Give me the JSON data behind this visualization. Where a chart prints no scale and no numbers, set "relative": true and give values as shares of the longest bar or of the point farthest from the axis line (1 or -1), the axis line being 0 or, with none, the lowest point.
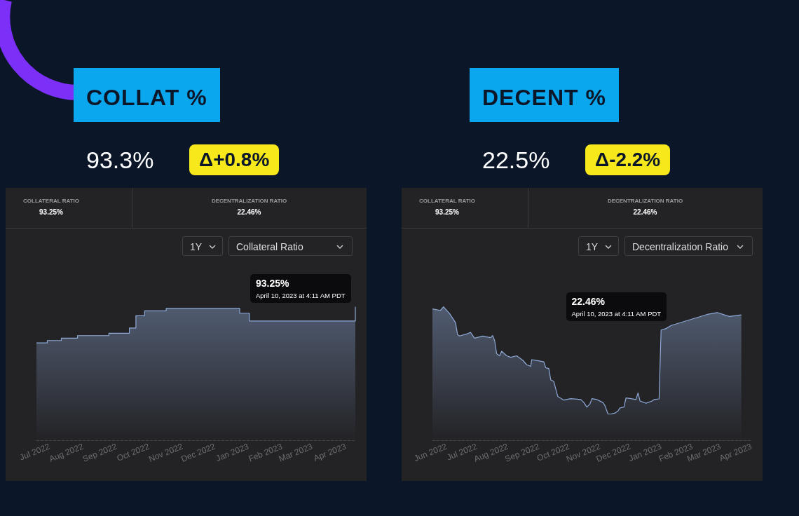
{
  "chart_data": [
    {
      "type": "step",
      "title": "COLLAT %",
      "relative": true,
      "color": "#8fa9d6",
      "annotations": [
        "93.3%",
        "Δ+0.8%",
        "COLLATERAL RATIO",
        "93.25%",
        "DECENTRALIZATION RATIO",
        "22.46%",
        "1Y",
        "Collateral Ratio",
        {
          "text": "93.25%\nApril 10, 2023 at 4:11 AM PDT",
          "x": "2023-04-10",
          "y": 1
        }
      ],
      "x": [
        "2022-06-19",
        "2022-06-29",
        "2022-07-12",
        "2022-07-27",
        "2022-08-25",
        "2022-09-13",
        "2022-09-19",
        "2022-09-27",
        "2022-10-17",
        "2022-12-24",
        "2023-01-02",
        "2023-04-07",
        "2023-04-10"
      ],
      "values": [
        0.729,
        0.747,
        0.765,
        0.784,
        0.802,
        0.841,
        0.933,
        0.97,
        0.988,
        0.952,
        0.894,
        0.894,
        1
      ],
      "xlim": [
        "2022-06-19",
        "2023-04-10"
      ],
      "xticks": [
        {
          "value": "2022-07-01",
          "label": "Jul 2022"
        },
        {
          "value": "2022-08-01",
          "label": "Aug 2022"
        },
        {
          "value": "2022-09-01",
          "label": "Sep 2022"
        },
        {
          "value": "2022-10-01",
          "label": "Oct 2022"
        },
        {
          "value": "2022-11-01",
          "label": "Nov 2022"
        },
        {
          "value": "2022-12-01",
          "label": "Dec 2022"
        },
        {
          "value": "2023-01-01",
          "label": "Jan 2023"
        },
        {
          "value": "2023-02-01",
          "label": "Feb 2023"
        },
        {
          "value": "2023-03-01",
          "label": "Mar 2023"
        },
        {
          "value": "2023-04-01",
          "label": "Apr 2023"
        }
      ]
    },
    {
      "type": "area",
      "title": "DECENT %",
      "relative": true,
      "color": "#8fa9d6",
      "annotations": [
        "22.5%",
        "Δ-2.2%",
        "COLLATERAL RATIO",
        "93.25%",
        "DECENTRALIZATION RATIO",
        "22.46%",
        "1Y",
        "Decentralization Ratio",
        {
          "text": "22.46%\nApril 10, 2023 at 4:11 AM PDT",
          "x": "2023-01-11",
          "y": 0.86
        }
      ],
      "x": [
        "2022-05-18",
        "2022-05-26",
        "2022-05-29",
        "2022-06-04",
        "2022-06-10",
        "2022-06-12",
        "2022-06-14",
        "2022-06-21",
        "2022-06-25",
        "2022-06-29",
        "2022-07-07",
        "2022-07-15",
        "2022-07-17",
        "2022-07-19",
        "2022-07-21",
        "2022-07-24",
        "2022-07-26",
        "2022-07-31",
        "2022-08-04",
        "2022-08-10",
        "2022-08-16",
        "2022-08-20",
        "2022-08-24",
        "2022-08-25",
        "2022-09-01",
        "2022-09-06",
        "2022-09-08",
        "2022-09-11",
        "2022-09-13",
        "2022-09-16",
        "2022-09-20",
        "2022-09-26",
        "2022-10-03",
        "2022-10-13",
        "2022-10-16",
        "2022-10-19",
        "2022-10-22",
        "2022-10-24",
        "2022-10-29",
        "2022-11-04",
        "2022-11-06",
        "2022-11-09",
        "2022-11-12",
        "2022-11-16",
        "2022-11-19",
        "2022-11-21",
        "2022-11-25",
        "2022-11-27",
        "2022-12-02",
        "2022-12-07",
        "2022-12-09",
        "2022-12-11",
        "2022-12-17",
        "2022-12-23",
        "2022-12-25",
        "2022-12-30",
        "2023-01-01",
        "2023-01-06",
        "2023-01-11",
        "2023-02-16",
        "2023-02-26",
        "2023-03-10",
        "2023-03-22"
      ],
      "values": [
        0.984,
        0.973,
        1,
        0.95,
        0.882,
        0.792,
        0.781,
        0.796,
        0.808,
        0.765,
        0.781,
        0.769,
        0.785,
        0.747,
        0.649,
        0.633,
        0.667,
        0.633,
        0.622,
        0.633,
        0.6,
        0.566,
        0.554,
        0.604,
        0.595,
        0.588,
        0.543,
        0.538,
        0.452,
        0.441,
        0.328,
        0.301,
        0.312,
        0.305,
        0.283,
        0.249,
        0.271,
        0.312,
        0.305,
        0.283,
        0.26,
        0.197,
        0.197,
        0.204,
        0.219,
        0.242,
        0.249,
        0.317,
        0.312,
        0.305,
        0.355,
        0.294,
        0.278,
        0.294,
        0.305,
        0.31,
        0.826,
        0.837,
        0.86,
        0.943,
        0.957,
        0.928,
        0.939
      ],
      "xlim": [
        "2022-05-18",
        "2023-04-01"
      ],
      "xticks": [
        {
          "value": "2022-06-01",
          "label": "Jun 2022"
        },
        {
          "value": "2022-07-01",
          "label": "Jul 2022"
        },
        {
          "value": "2022-08-01",
          "label": "Aug 2022"
        },
        {
          "value": "2022-09-01",
          "label": "Sep 2022"
        },
        {
          "value": "2022-10-01",
          "label": "Oct 2022"
        },
        {
          "value": "2022-11-01",
          "label": "Nov 2022"
        },
        {
          "value": "2022-12-01",
          "label": "Dec 2022"
        },
        {
          "value": "2023-01-01",
          "label": "Jan 2023"
        },
        {
          "value": "2023-02-01",
          "label": "Feb 2023"
        },
        {
          "value": "2023-03-01",
          "label": "Mar 2023"
        },
        {
          "value": "2023-04-01",
          "label": "Apr 2023"
        }
      ]
    }
  ]
}
